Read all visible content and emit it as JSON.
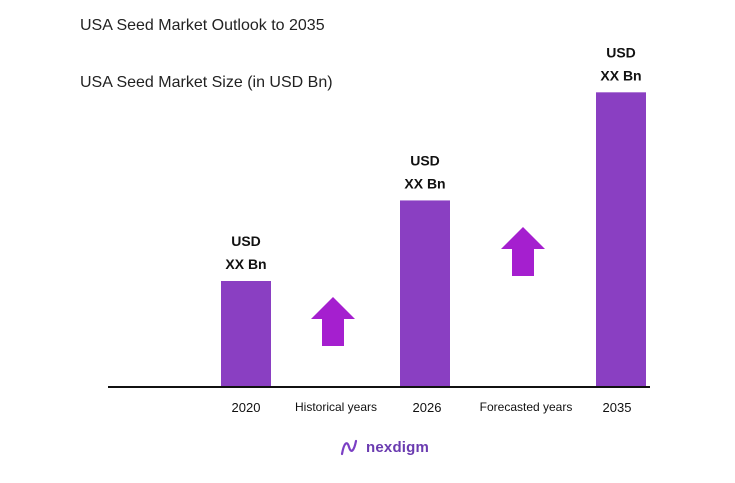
{
  "title": "USA Seed Market Outlook to 2035",
  "subtitle": "USA Seed Market Size (in USD Bn)",
  "brand": "nexdigm",
  "colors": {
    "bar": "#8a3fc2",
    "arrow": "#a51fcf",
    "axis": "#111111",
    "brand": "#6a3bb0"
  },
  "chart_data": {
    "type": "bar",
    "title": "USA Seed Market Outlook to 2035",
    "ylabel": "USA Seed Market Size (in USD Bn)",
    "categories": [
      "2020",
      "2026",
      "2035"
    ],
    "values": [
      1.0,
      1.76,
      2.78
    ],
    "value_labels": [
      [
        "USD",
        "XX Bn"
      ],
      [
        "USD",
        "XX Bn"
      ],
      [
        "USD",
        "XX Bn"
      ]
    ],
    "period_labels": [
      "Historical years",
      "Forecasted years"
    ],
    "growth_arrows": 2,
    "grid": false,
    "legend": "none"
  }
}
